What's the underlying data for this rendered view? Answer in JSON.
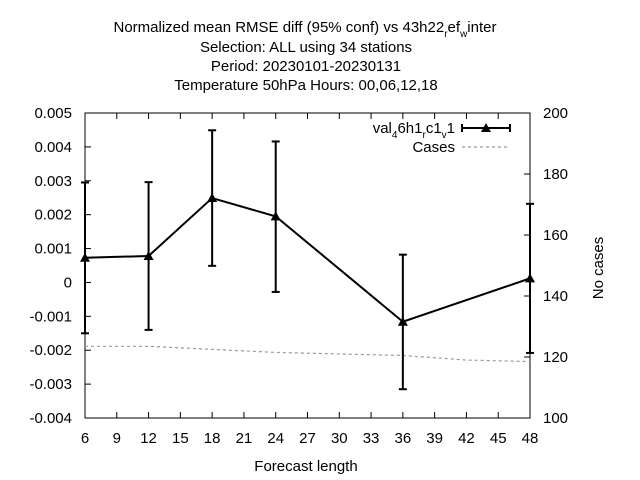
{
  "chart_data": {
    "type": "line",
    "title_lines": [
      "Normalized mean RMSE diff (95% conf) vs 43h22",
      "Selection: ALL using    34 stations",
      "Period: 20230101-20230131",
      "Temperature 50hPa   Hours:  00,06,12,18"
    ],
    "title_sub": {
      "r1": "r",
      "ef": "ef",
      "w": "w",
      "inter": "inter"
    },
    "xlabel": "Forecast length",
    "ylabel_left": "",
    "ylabel_right": "No cases",
    "xlim": [
      6,
      48
    ],
    "ylim_left": [
      -0.004,
      0.005
    ],
    "ylim_right": [
      100,
      200
    ],
    "x_ticks": [
      6,
      9,
      12,
      15,
      18,
      21,
      24,
      27,
      30,
      33,
      36,
      39,
      42,
      45,
      48
    ],
    "y_ticks_left": [
      "0.005",
      "0.004",
      "0.003",
      "0.002",
      "0.001",
      "0",
      "-0.001",
      "-0.002",
      "-0.003",
      "-0.004"
    ],
    "y_tick_values_left": [
      0.005,
      0.004,
      0.003,
      0.002,
      0.001,
      0,
      -0.001,
      -0.002,
      -0.003,
      -0.004
    ],
    "y_ticks_right": [
      200,
      180,
      160,
      140,
      120,
      100
    ],
    "legend": {
      "series_label": {
        "a": "val",
        "b": "4",
        "c": "6h1",
        "d": "r",
        "e": "c1",
        "f": "v",
        "g": "1"
      },
      "cases_label": "Cases",
      "placement": "top-right"
    },
    "series": [
      {
        "x": [
          6,
          12,
          18,
          24,
          36,
          48
        ],
        "y": [
          0.00073,
          0.00078,
          0.00249,
          0.00195,
          -0.00116,
          0.00012
        ],
        "err_low": [
          -0.0015,
          -0.0014,
          0.00049,
          -0.00028,
          -0.00315,
          -0.00208
        ],
        "err_high": [
          0.00295,
          0.00296,
          0.00449,
          0.00416,
          0.00082,
          0.00232
        ],
        "color": "#000000"
      },
      {
        "x": [
          6,
          12,
          18,
          24,
          30,
          36,
          42,
          48
        ],
        "y": [
          123.5,
          123.5,
          122.5,
          121.5,
          121,
          120.5,
          119,
          118.5
        ],
        "axis": "right",
        "color": "#999999"
      }
    ],
    "grid": false
  }
}
